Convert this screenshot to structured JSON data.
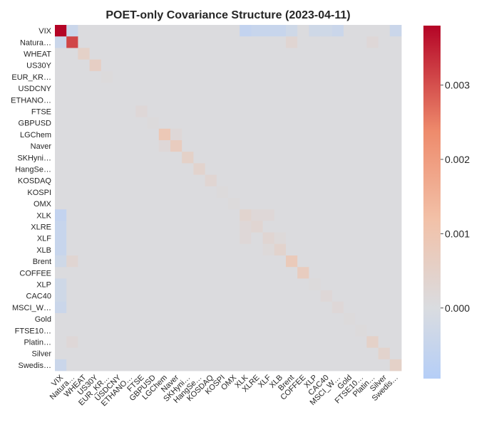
{
  "chart_data": {
    "type": "heatmap",
    "title": "POET-only Covariance Structure (2023-04-11)",
    "labels": [
      "VIX",
      "Natura…",
      "WHEAT",
      "US30Y",
      "EUR_KR…",
      "USDCNY",
      "ETHANO…",
      "FTSE",
      "GBPUSD",
      "LGChem",
      "Naver",
      "SKHyni…",
      "HangSe…",
      "KOSDAQ",
      "KOSPI",
      "OMX",
      "XLK",
      "XLRE",
      "XLF",
      "XLB",
      "Brent",
      "COFFEE",
      "XLP",
      "CAC40",
      "MSCI_W…",
      "Gold",
      "FTSE10…",
      "Platin…",
      "Silver",
      "Swedis…"
    ],
    "colorbar": {
      "min": -0.00095,
      "max": 0.0038,
      "ticks": [
        0.0,
        0.001,
        0.002,
        0.003
      ],
      "tick_labels": [
        "0.000",
        "0.001",
        "0.002",
        "0.003"
      ],
      "colormap": "coolwarm"
    },
    "diagonal": [
      0.0038,
      0.0031,
      0.0005,
      0.0006,
      0.0001,
      5e-05,
      5e-05,
      0.0002,
      0.0001,
      0.0009,
      0.0007,
      0.0005,
      0.0004,
      0.0003,
      0.0001,
      0.0001,
      0.00035,
      0.0003,
      0.0003,
      0.0004,
      0.0008,
      0.0007,
      0.0001,
      0.0002,
      0.0002,
      0.0001,
      0.0001,
      0.0005,
      0.0004,
      0.0005
    ],
    "off_diagonal": [
      {
        "pair": [
          "VIX",
          "Natura…"
        ],
        "value": -0.0004
      },
      {
        "pair": [
          "VIX",
          "XLK"
        ],
        "value": -0.0006
      },
      {
        "pair": [
          "VIX",
          "XLRE"
        ],
        "value": -0.0005
      },
      {
        "pair": [
          "VIX",
          "XLF"
        ],
        "value": -0.0005
      },
      {
        "pair": [
          "VIX",
          "XLB"
        ],
        "value": -0.0005
      },
      {
        "pair": [
          "VIX",
          "Brent"
        ],
        "value": -0.0003
      },
      {
        "pair": [
          "VIX",
          "XLP"
        ],
        "value": -0.0003
      },
      {
        "pair": [
          "VIX",
          "CAC40"
        ],
        "value": -0.0003
      },
      {
        "pair": [
          "VIX",
          "MSCI_W…"
        ],
        "value": -0.0004
      },
      {
        "pair": [
          "VIX",
          "Swedis…"
        ],
        "value": -0.0004
      },
      {
        "pair": [
          "Natura…",
          "Brent"
        ],
        "value": 0.0003
      },
      {
        "pair": [
          "Natura…",
          "Platin…"
        ],
        "value": 0.0002
      },
      {
        "pair": [
          "LGChem",
          "Naver"
        ],
        "value": 0.0002
      },
      {
        "pair": [
          "XLK",
          "XLRE"
        ],
        "value": 0.0002
      },
      {
        "pair": [
          "XLK",
          "XLF"
        ],
        "value": 0.0002
      },
      {
        "pair": [
          "XLF",
          "XLB"
        ],
        "value": 0.00015
      }
    ]
  }
}
